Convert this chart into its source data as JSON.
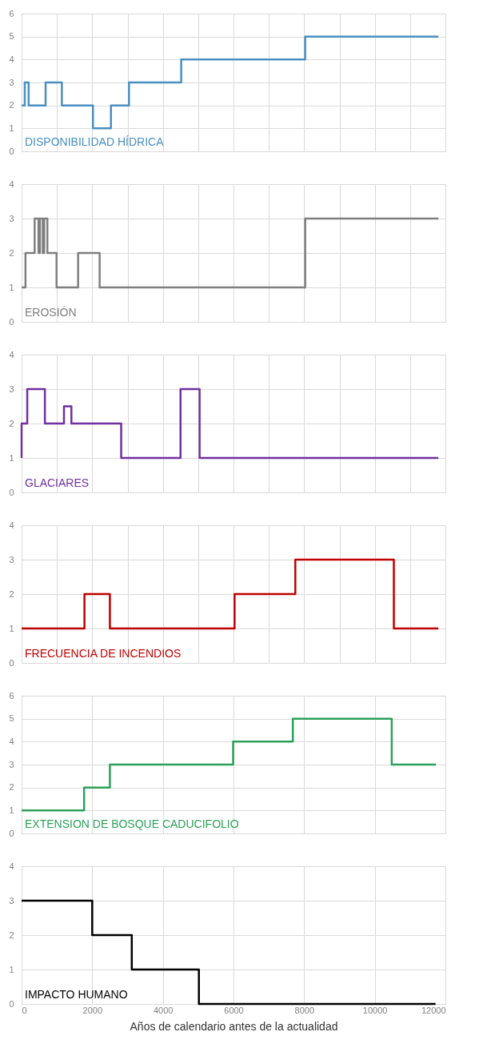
{
  "chart_data": [
    {
      "type": "step",
      "x": [
        0,
        90,
        200,
        680,
        1140,
        2020,
        2530,
        3040,
        4520,
        8030,
        11800
      ],
      "series": [
        {
          "name": "DISPONIBILIDAD HÍDRICA",
          "color": "#4a8fc0",
          "values": [
            2,
            3,
            2,
            3,
            2,
            1,
            2,
            3,
            4,
            5,
            5
          ]
        }
      ],
      "xlim": [
        0,
        12000
      ],
      "xticks": [
        0,
        1000,
        2000,
        3000,
        4000,
        5000,
        6000,
        7000,
        8000,
        9000,
        10000,
        11000,
        12000
      ],
      "ylim": [
        0,
        6
      ],
      "yticks": [
        0,
        1,
        2,
        3,
        4,
        5,
        6
      ],
      "grid": true,
      "tick_labels": "y"
    },
    {
      "type": "step",
      "x": [
        0,
        110,
        370,
        480,
        520,
        600,
        640,
        730,
        990,
        1600,
        2210,
        8030,
        11800
      ],
      "series": [
        {
          "name": "EROSIÓN",
          "color": "#7f7f7f",
          "values": [
            1,
            2,
            3,
            2,
            3,
            2,
            3,
            2,
            1,
            2,
            1,
            3,
            3
          ]
        }
      ],
      "xlim": [
        0,
        12000
      ],
      "xticks": [
        0,
        1000,
        2000,
        3000,
        4000,
        5000,
        6000,
        7000,
        8000,
        9000,
        10000,
        11000,
        12000
      ],
      "ylim": [
        0,
        4
      ],
      "yticks": [
        0,
        1,
        2,
        3,
        4
      ],
      "grid": true,
      "tick_labels": "y"
    },
    {
      "type": "step",
      "x": [
        0,
        0,
        160,
        660,
        1200,
        1410,
        2820,
        4500,
        5040,
        11800
      ],
      "series": [
        {
          "name": "GLACIARES",
          "color": "#7030a0",
          "values": [
            1,
            2,
            3,
            2,
            2.5,
            2,
            1,
            3,
            1,
            1
          ]
        }
      ],
      "xlim": [
        0,
        12000
      ],
      "xticks": [
        0,
        1000,
        2000,
        3000,
        4000,
        5000,
        6000,
        7000,
        8000,
        9000,
        10000,
        11000,
        12000
      ],
      "ylim": [
        0,
        4
      ],
      "yticks": [
        0,
        1,
        2,
        3,
        4
      ],
      "grid": true,
      "tick_labels": "y"
    },
    {
      "type": "step",
      "x": [
        0,
        1780,
        2500,
        6030,
        7750,
        10540,
        11800
      ],
      "series": [
        {
          "name": "FRECUENCIA DE INCENDIOS",
          "color": "#c00000",
          "values": [
            1,
            2,
            1,
            2,
            3,
            1,
            1
          ]
        }
      ],
      "xlim": [
        0,
        12000
      ],
      "xticks": [
        0,
        1000,
        2000,
        3000,
        4000,
        5000,
        6000,
        7000,
        8000,
        9000,
        10000,
        11000,
        12000
      ],
      "ylim": [
        0,
        4
      ],
      "yticks": [
        0,
        1,
        2,
        3,
        4
      ],
      "grid": true,
      "tick_labels": "y"
    },
    {
      "type": "step",
      "x": [
        0,
        1770,
        2500,
        5990,
        7680,
        10480,
        11730
      ],
      "series": [
        {
          "name": "EXTENSION DE BOSQUE CADUCIFOLIO",
          "color": "#2ca05a",
          "values": [
            1,
            2,
            3,
            4,
            5,
            3,
            3
          ]
        }
      ],
      "xlim": [
        0,
        12000
      ],
      "xticks": [
        0,
        2000,
        4000,
        6000,
        8000,
        10000,
        12000
      ],
      "ylim": [
        0,
        6
      ],
      "yticks": [
        0,
        1,
        2,
        3,
        4,
        5,
        6
      ],
      "grid": true,
      "tick_labels": "y"
    },
    {
      "type": "step",
      "x": [
        0,
        2000,
        3120,
        5020,
        11720
      ],
      "series": [
        {
          "name": "IMPACTO HUMANO",
          "color": "#000000",
          "values": [
            3,
            2,
            1,
            0,
            0
          ]
        }
      ],
      "xlim": [
        0,
        12000
      ],
      "xticks": [
        0,
        2000,
        4000,
        6000,
        8000,
        10000,
        12000
      ],
      "ylim": [
        0,
        4
      ],
      "yticks": [
        0,
        1,
        2,
        3,
        4
      ],
      "grid": true,
      "xlabel": "Años de calendario antes de la actualidad"
    }
  ]
}
